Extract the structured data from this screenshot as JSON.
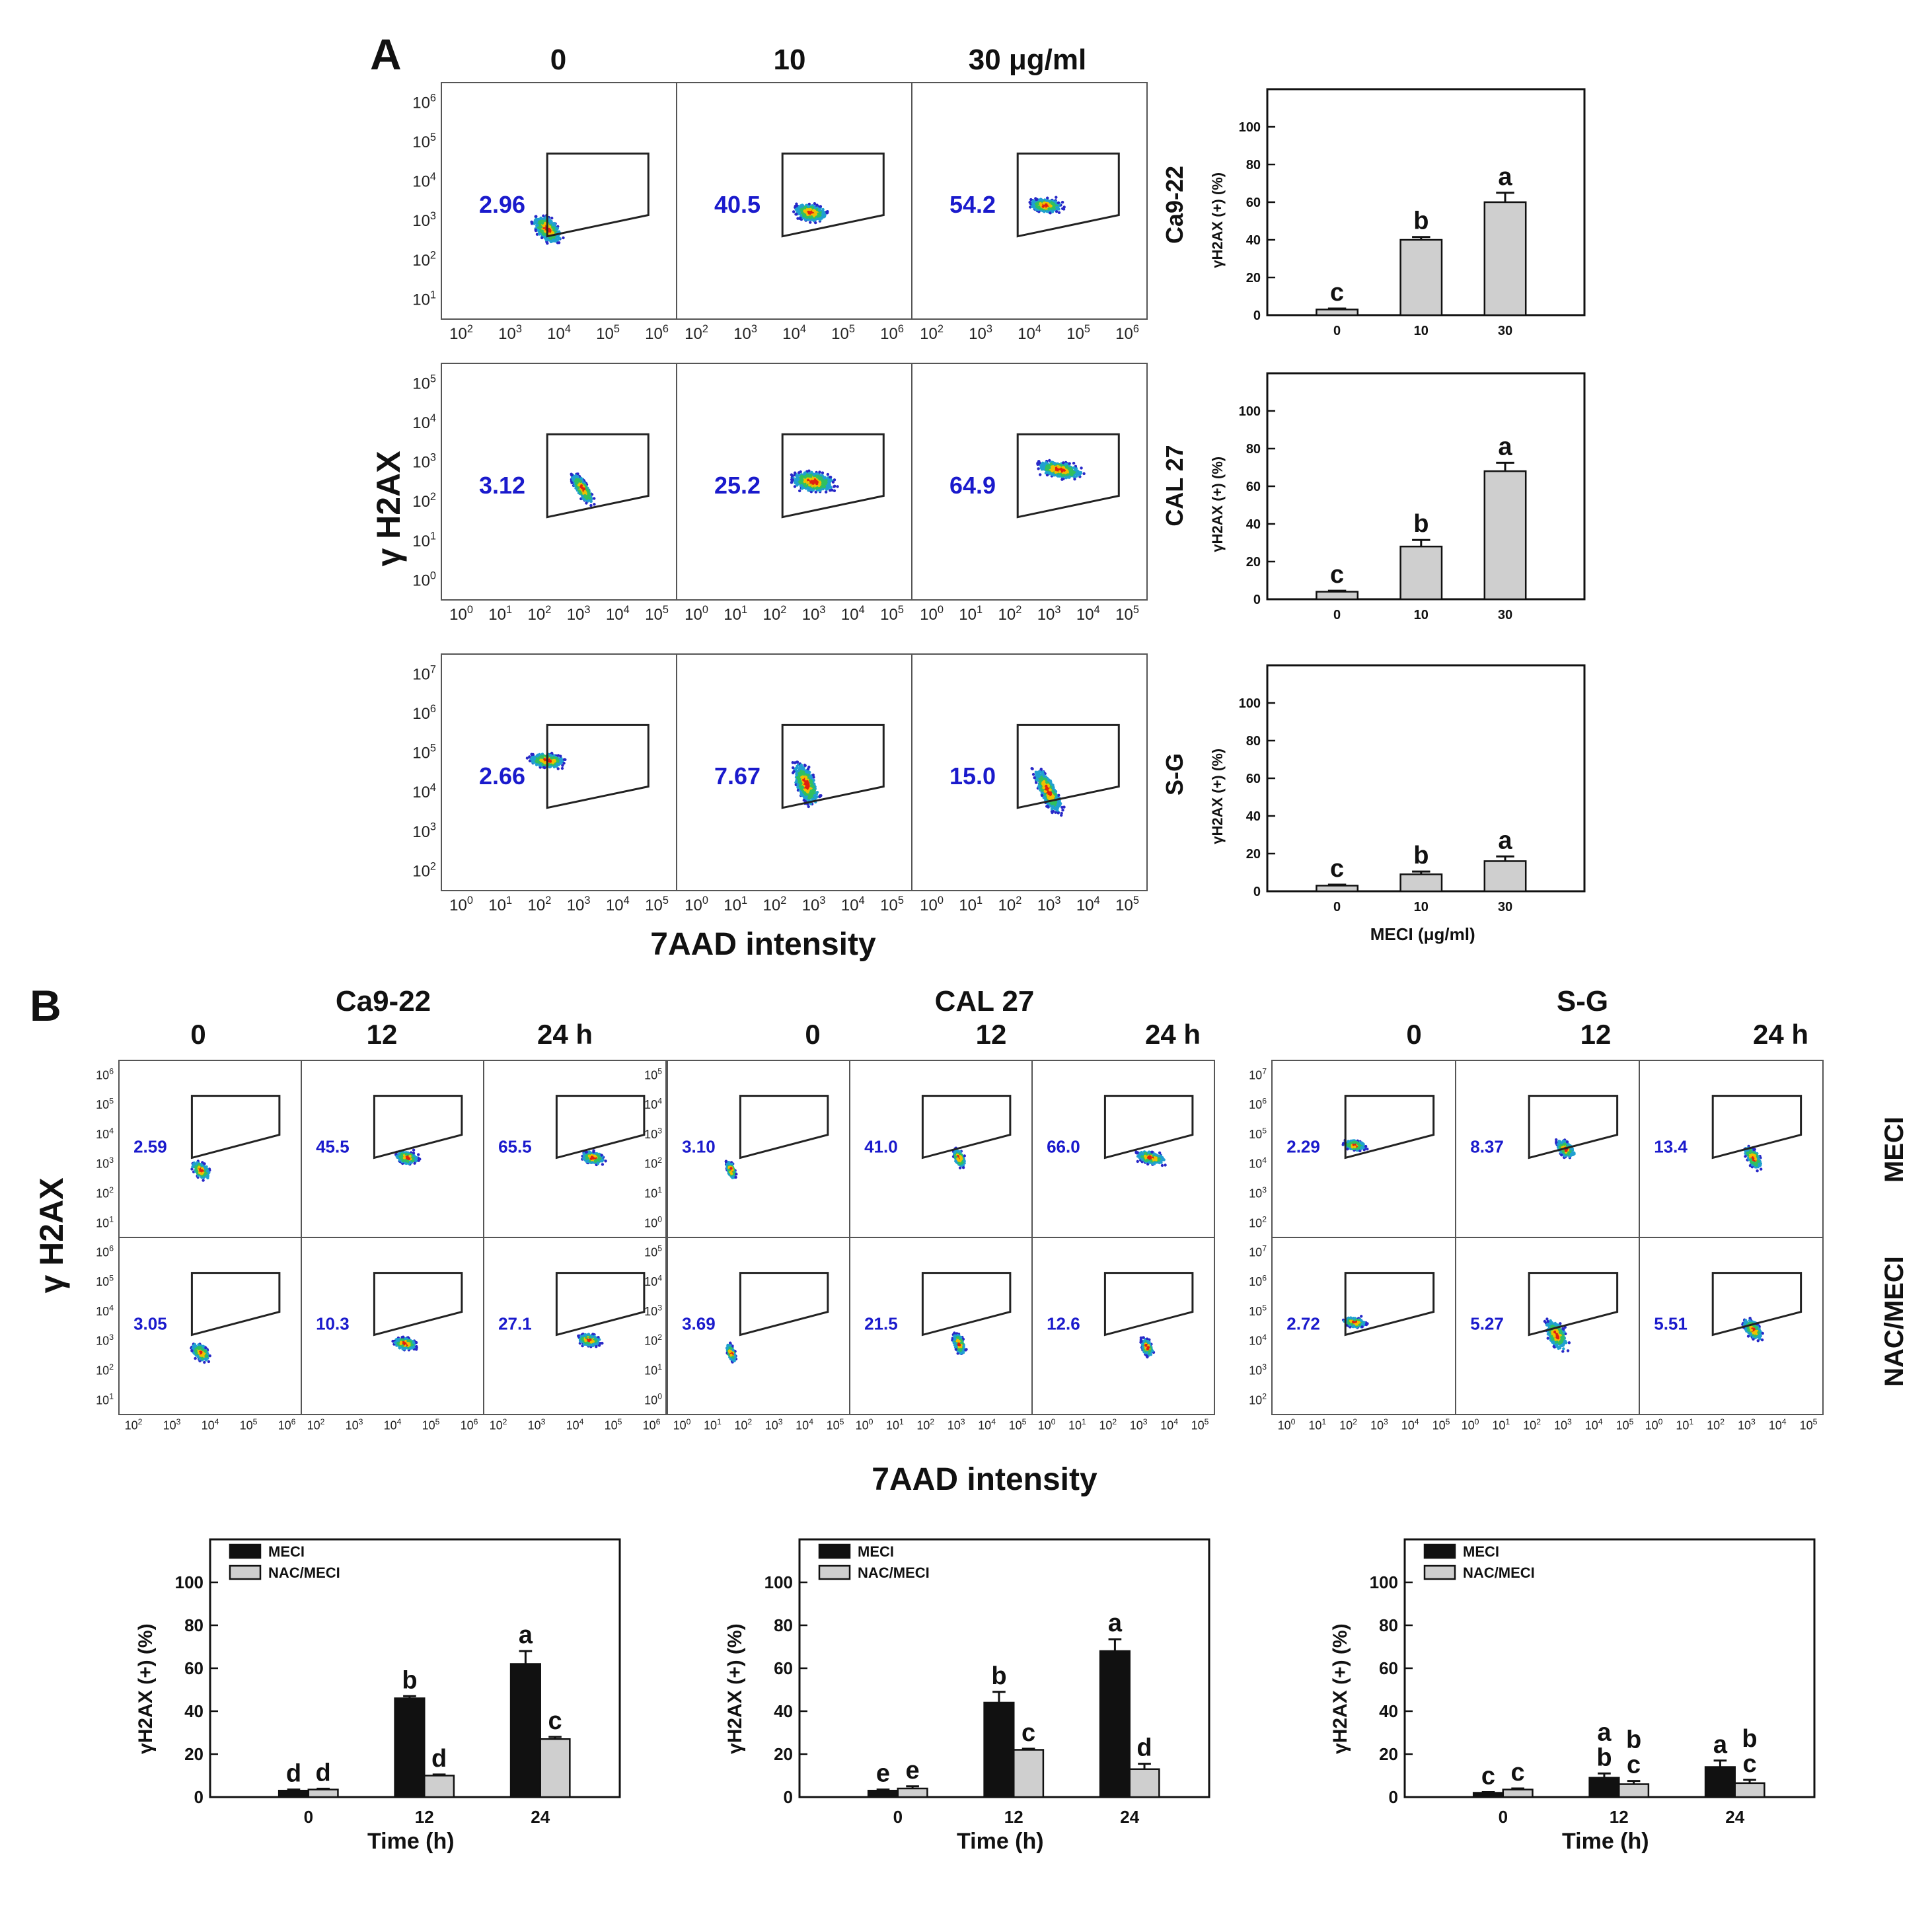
{
  "panelA": {
    "letter": "A",
    "concentrations": [
      "0",
      "10",
      "30 μg/ml"
    ],
    "ylabel": "γ H2AX",
    "xlabel": "7AAD intensity",
    "rows": [
      {
        "cell": "Ca9-22",
        "gate_values": [
          "2.96",
          "40.5",
          "54.2"
        ]
      },
      {
        "cell": "CAL 27",
        "gate_values": [
          "3.12",
          "25.2",
          "64.9"
        ]
      },
      {
        "cell": "S-G",
        "gate_values": [
          "2.66",
          "7.67",
          "15.0"
        ]
      }
    ]
  },
  "panelB": {
    "letter": "B",
    "times": [
      "0",
      "12",
      "24 h"
    ],
    "ylabel": "γ H2AX",
    "xlabel": "7AAD intensity",
    "row_labels": [
      "MECI",
      "NAC/MECI"
    ],
    "groups": [
      {
        "cell": "Ca9-22",
        "meci": [
          "2.59",
          "45.5",
          "65.5"
        ],
        "nac": [
          "3.05",
          "10.3",
          "27.1"
        ]
      },
      {
        "cell": "CAL 27",
        "meci": [
          "3.10",
          "41.0",
          "66.0"
        ],
        "nac": [
          "3.69",
          "21.5",
          "12.6"
        ]
      },
      {
        "cell": "S-G",
        "meci": [
          "2.29",
          "8.37",
          "13.4"
        ],
        "nac": [
          "2.72",
          "5.27",
          "5.51"
        ]
      }
    ]
  },
  "flow_axes": {
    "Ca9-22": {
      "x": [
        "10^2",
        "10^3",
        "10^4",
        "10^5",
        "10^6"
      ],
      "y": [
        "10^1",
        "10^2",
        "10^3",
        "10^4",
        "10^5",
        "10^6"
      ]
    },
    "CAL 27": {
      "x": [
        "10^0",
        "10^1",
        "10^2",
        "10^3",
        "10^4",
        "10^5"
      ],
      "y": [
        "10^0",
        "10^1",
        "10^2",
        "10^3",
        "10^4",
        "10^5"
      ]
    },
    "S-G": {
      "x": [
        "10^0",
        "10^1",
        "10^2",
        "10^3",
        "10^4",
        "10^5"
      ],
      "y": [
        "10^2",
        "10^3",
        "10^4",
        "10^5",
        "10^6",
        "10^7"
      ]
    }
  },
  "chart_data": [
    {
      "type": "bar",
      "title": "Ca9-22",
      "xlabel": "",
      "ylabel": "γH2AX (+) (%)",
      "categories": [
        "0",
        "10",
        "30"
      ],
      "values": [
        3,
        40,
        60
      ],
      "errors": [
        0.5,
        1.5,
        5
      ],
      "letters": [
        "c",
        "b",
        "a"
      ],
      "ylim": [
        0,
        120
      ],
      "yticks": [
        0,
        20,
        40,
        60,
        80,
        100
      ]
    },
    {
      "type": "bar",
      "title": "CAL 27",
      "xlabel": "",
      "ylabel": "γH2AX (+) (%)",
      "categories": [
        "0",
        "10",
        "30"
      ],
      "values": [
        4,
        28,
        68
      ],
      "errors": [
        0.5,
        3.5,
        4.5
      ],
      "letters": [
        "c",
        "b",
        "a"
      ],
      "ylim": [
        0,
        120
      ],
      "yticks": [
        0,
        20,
        40,
        60,
        80,
        100
      ]
    },
    {
      "type": "bar",
      "title": "S-G",
      "xlabel": "MECI (μg/ml)",
      "ylabel": "γH2AX (+) (%)",
      "categories": [
        "0",
        "10",
        "30"
      ],
      "values": [
        3,
        9,
        16
      ],
      "errors": [
        0.5,
        1.5,
        2.5
      ],
      "letters": [
        "c",
        "b",
        "a"
      ],
      "ylim": [
        0,
        120
      ],
      "yticks": [
        0,
        20,
        40,
        60,
        80,
        100
      ]
    },
    {
      "type": "bar",
      "title": "Ca9-22",
      "xlabel": "Time (h)",
      "ylabel": "γH2AX (+) (%)",
      "categories": [
        "0",
        "12",
        "24"
      ],
      "legend": [
        "MECI",
        "NAC/MECI"
      ],
      "legend_position": "top-left",
      "series": [
        {
          "name": "MECI",
          "values": [
            3,
            46,
            62
          ],
          "errors": [
            0.5,
            1,
            6
          ],
          "letters": [
            "d",
            "b",
            "a"
          ]
        },
        {
          "name": "NAC/MECI",
          "values": [
            3.5,
            10,
            27
          ],
          "errors": [
            0.4,
            0.5,
            1
          ],
          "letters": [
            "d",
            "d",
            "c"
          ]
        }
      ],
      "ylim": [
        0,
        120
      ],
      "yticks": [
        0,
        20,
        40,
        60,
        80,
        100
      ]
    },
    {
      "type": "bar",
      "title": "CAL 27",
      "xlabel": "Time (h)",
      "ylabel": "γH2AX (+) (%)",
      "categories": [
        "0",
        "12",
        "24"
      ],
      "legend": [
        "MECI",
        "NAC/MECI"
      ],
      "legend_position": "top-left",
      "series": [
        {
          "name": "MECI",
          "values": [
            3,
            44,
            68
          ],
          "errors": [
            0.5,
            5,
            5.5
          ],
          "letters": [
            "e",
            "b",
            "a"
          ]
        },
        {
          "name": "NAC/MECI",
          "values": [
            4,
            22,
            13
          ],
          "errors": [
            1,
            0.5,
            2.5
          ],
          "letters": [
            "e",
            "c",
            "d"
          ]
        }
      ],
      "ylim": [
        0,
        120
      ],
      "yticks": [
        0,
        20,
        40,
        60,
        80,
        100
      ]
    },
    {
      "type": "bar",
      "title": "S-G",
      "xlabel": "Time (h)",
      "ylabel": "γH2AX (+) (%)",
      "categories": [
        "0",
        "12",
        "24"
      ],
      "legend": [
        "MECI",
        "NAC/MECI"
      ],
      "legend_position": "top-left",
      "series": [
        {
          "name": "MECI",
          "values": [
            2,
            9,
            14
          ],
          "errors": [
            0.3,
            2,
            3
          ],
          "letters": [
            "c",
            "a b",
            "a"
          ]
        },
        {
          "name": "NAC/MECI",
          "values": [
            3.5,
            6,
            6.5
          ],
          "errors": [
            0.5,
            1.5,
            1.5
          ],
          "letters": [
            "c",
            "b c",
            "b c"
          ]
        }
      ],
      "ylim": [
        0,
        120
      ],
      "yticks": [
        0,
        20,
        40,
        60,
        80,
        100
      ]
    }
  ]
}
